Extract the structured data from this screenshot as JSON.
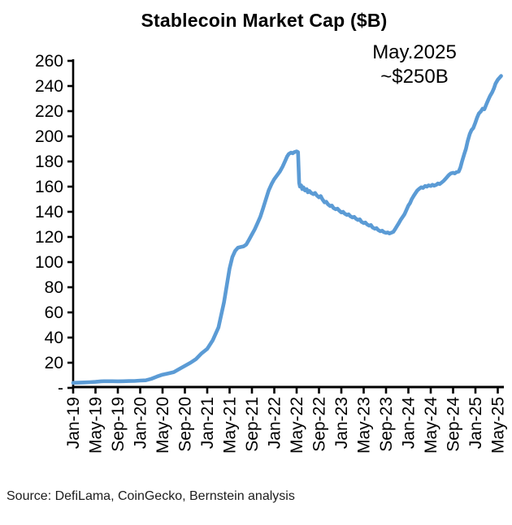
{
  "title": "Stablecoin Market Cap ($B)",
  "annotation": {
    "line1": "May.2025",
    "line2": "~$250B"
  },
  "source": "Source: DefiLama, CoinGecko, Bernstein analysis",
  "colors": {
    "line": "#5b9bd5",
    "axis": "#000000",
    "text": "#000000",
    "source_text": "#1c1c1c",
    "background": "#ffffff"
  },
  "chart_data": {
    "type": "line",
    "title": "Stablecoin Market Cap ($B)",
    "xlabel": "",
    "ylabel": "",
    "grid": false,
    "legend": "none",
    "ylim": [
      0,
      260
    ],
    "y_ticks": [
      {
        "value": 0,
        "label": "-"
      },
      {
        "value": 20,
        "label": "20"
      },
      {
        "value": 40,
        "label": "40"
      },
      {
        "value": 60,
        "label": "60"
      },
      {
        "value": 80,
        "label": "80"
      },
      {
        "value": 100,
        "label": "100"
      },
      {
        "value": 120,
        "label": "120"
      },
      {
        "value": 140,
        "label": "140"
      },
      {
        "value": 160,
        "label": "160"
      },
      {
        "value": 180,
        "label": "180"
      },
      {
        "value": 200,
        "label": "200"
      },
      {
        "value": 220,
        "label": "220"
      },
      {
        "value": 240,
        "label": "240"
      },
      {
        "value": 260,
        "label": "260"
      }
    ],
    "x_axis": {
      "unit": "months since Jan-2019",
      "range_months": [
        0,
        76.6
      ],
      "tick_every_months": 4,
      "labeled_ticks": [
        {
          "m": 0,
          "label": "Jan-19"
        },
        {
          "m": 4,
          "label": "May-19"
        },
        {
          "m": 8,
          "label": "Sep-19"
        },
        {
          "m": 12,
          "label": "Jan-20"
        },
        {
          "m": 16,
          "label": "May-20"
        },
        {
          "m": 20,
          "label": "Sep-20"
        },
        {
          "m": 24,
          "label": "Jan-21"
        },
        {
          "m": 28,
          "label": "May-21"
        },
        {
          "m": 32,
          "label": "Sep-21"
        },
        {
          "m": 36,
          "label": "Jan-22"
        },
        {
          "m": 40,
          "label": "May-22"
        },
        {
          "m": 44,
          "label": "Sep-22"
        },
        {
          "m": 48,
          "label": "Jan-23"
        },
        {
          "m": 52,
          "label": "May-23"
        },
        {
          "m": 56,
          "label": "Sep-23"
        },
        {
          "m": 60,
          "label": "Jan-24"
        },
        {
          "m": 64,
          "label": "May-24"
        },
        {
          "m": 68,
          "label": "Sep-24"
        },
        {
          "m": 72,
          "label": "Jan-25"
        },
        {
          "m": 76,
          "label": "May-25"
        }
      ]
    },
    "annotation": {
      "text": [
        "May.2025",
        "~$250B"
      ],
      "near_month": 61,
      "near_value": 250
    },
    "series": [
      {
        "name": "Stablecoin market cap ($B)",
        "color": "#5b9bd5",
        "points": [
          [
            0,
            4.0
          ],
          [
            1,
            4.1
          ],
          [
            2,
            4.3
          ],
          [
            3,
            4.5
          ],
          [
            4,
            4.8
          ],
          [
            5,
            5.2
          ],
          [
            6,
            5.3
          ],
          [
            7,
            5.3
          ],
          [
            8,
            5.2
          ],
          [
            9,
            5.3
          ],
          [
            10,
            5.4
          ],
          [
            11,
            5.5
          ],
          [
            12,
            5.8
          ],
          [
            13,
            6.0
          ],
          [
            14,
            7.2
          ],
          [
            15,
            9.0
          ],
          [
            16,
            10.5
          ],
          [
            17,
            11.5
          ],
          [
            18,
            12.5
          ],
          [
            19,
            15.0
          ],
          [
            20,
            17.5
          ],
          [
            21,
            20.0
          ],
          [
            22,
            23.0
          ],
          [
            23,
            27.5
          ],
          [
            24,
            31
          ],
          [
            25,
            38
          ],
          [
            26,
            48
          ],
          [
            27,
            68
          ],
          [
            28,
            95
          ],
          [
            28.5,
            104
          ],
          [
            29,
            109
          ],
          [
            29.5,
            111.5
          ],
          [
            30,
            112
          ],
          [
            30.5,
            112.5
          ],
          [
            31,
            114
          ],
          [
            31.5,
            118
          ],
          [
            32,
            122
          ],
          [
            32.5,
            126
          ],
          [
            33,
            131
          ],
          [
            33.5,
            136
          ],
          [
            34,
            143
          ],
          [
            34.5,
            150
          ],
          [
            35,
            157
          ],
          [
            35.5,
            162
          ],
          [
            36,
            166
          ],
          [
            36.5,
            169
          ],
          [
            37,
            172
          ],
          [
            37.5,
            176
          ],
          [
            38,
            181
          ],
          [
            38.3,
            184
          ],
          [
            38.6,
            186
          ],
          [
            39,
            187
          ],
          [
            39.3,
            186.5
          ],
          [
            39.6,
            187.5
          ],
          [
            40,
            188
          ],
          [
            40.25,
            187.5
          ],
          [
            40.45,
            163
          ],
          [
            40.6,
            160
          ],
          [
            40.8,
            161
          ],
          [
            41,
            158
          ],
          [
            41.2,
            159.5
          ],
          [
            41.5,
            157
          ],
          [
            41.8,
            158
          ],
          [
            42,
            155.5
          ],
          [
            42.3,
            156.5
          ],
          [
            42.6,
            155
          ],
          [
            43,
            154
          ],
          [
            43.3,
            155
          ],
          [
            43.6,
            153
          ],
          [
            44,
            151.5
          ],
          [
            44.3,
            152.5
          ],
          [
            44.6,
            150
          ],
          [
            45,
            147.5
          ],
          [
            45.3,
            148
          ],
          [
            45.6,
            146
          ],
          [
            46,
            144.5
          ],
          [
            46.3,
            145
          ],
          [
            46.6,
            143
          ],
          [
            47,
            142
          ],
          [
            47.3,
            142.5
          ],
          [
            47.6,
            141
          ],
          [
            48,
            139.5
          ],
          [
            48.3,
            140
          ],
          [
            48.6,
            138.5
          ],
          [
            49,
            137.5
          ],
          [
            49.3,
            138
          ],
          [
            49.6,
            136.5
          ],
          [
            50,
            135.5
          ],
          [
            50.3,
            136
          ],
          [
            50.6,
            134.5
          ],
          [
            51,
            133.5
          ],
          [
            51.3,
            134
          ],
          [
            51.6,
            132
          ],
          [
            52,
            131
          ],
          [
            52.3,
            131.5
          ],
          [
            52.6,
            130
          ],
          [
            53,
            129
          ],
          [
            53.3,
            129.5
          ],
          [
            53.6,
            127.5
          ],
          [
            54,
            126.5
          ],
          [
            54.3,
            127
          ],
          [
            54.6,
            125.5
          ],
          [
            55,
            124.5
          ],
          [
            55.3,
            125
          ],
          [
            55.6,
            123.8
          ],
          [
            56,
            123.2
          ],
          [
            56.3,
            123.6
          ],
          [
            56.6,
            122.8
          ],
          [
            57,
            123.5
          ],
          [
            57.3,
            124
          ],
          [
            57.6,
            126
          ],
          [
            58,
            129
          ],
          [
            58.3,
            131
          ],
          [
            58.6,
            133.5
          ],
          [
            59,
            136
          ],
          [
            59.3,
            138
          ],
          [
            59.6,
            141
          ],
          [
            60,
            145
          ],
          [
            60.3,
            147
          ],
          [
            60.6,
            150
          ],
          [
            61,
            153
          ],
          [
            61.3,
            155
          ],
          [
            61.6,
            157
          ],
          [
            62,
            158.5
          ],
          [
            62.3,
            159.5
          ],
          [
            62.6,
            159
          ],
          [
            63,
            160.5
          ],
          [
            63.3,
            160
          ],
          [
            63.6,
            161
          ],
          [
            64,
            160.5
          ],
          [
            64.3,
            161.5
          ],
          [
            64.6,
            160.8
          ],
          [
            65,
            161.5
          ],
          [
            65.3,
            162.5
          ],
          [
            65.6,
            162
          ],
          [
            66,
            163.5
          ],
          [
            66.3,
            164.5
          ],
          [
            66.6,
            166
          ],
          [
            67,
            168
          ],
          [
            67.3,
            169.5
          ],
          [
            67.6,
            170.5
          ],
          [
            68,
            171
          ],
          [
            68.3,
            170.5
          ],
          [
            68.6,
            171.5
          ],
          [
            69,
            172
          ],
          [
            69.3,
            175
          ],
          [
            69.6,
            180
          ],
          [
            70,
            186
          ],
          [
            70.3,
            190
          ],
          [
            70.6,
            196
          ],
          [
            71,
            202
          ],
          [
            71.3,
            205
          ],
          [
            71.6,
            206.5
          ],
          [
            72,
            211
          ],
          [
            72.3,
            215
          ],
          [
            72.6,
            218
          ],
          [
            73,
            220
          ],
          [
            73.3,
            222
          ],
          [
            73.6,
            221.5
          ],
          [
            74,
            226
          ],
          [
            74.3,
            229
          ],
          [
            74.6,
            232
          ],
          [
            75,
            235
          ],
          [
            75.3,
            238
          ],
          [
            75.6,
            242
          ],
          [
            76,
            245
          ],
          [
            76.3,
            246.5
          ],
          [
            76.6,
            248
          ]
        ]
      }
    ]
  }
}
